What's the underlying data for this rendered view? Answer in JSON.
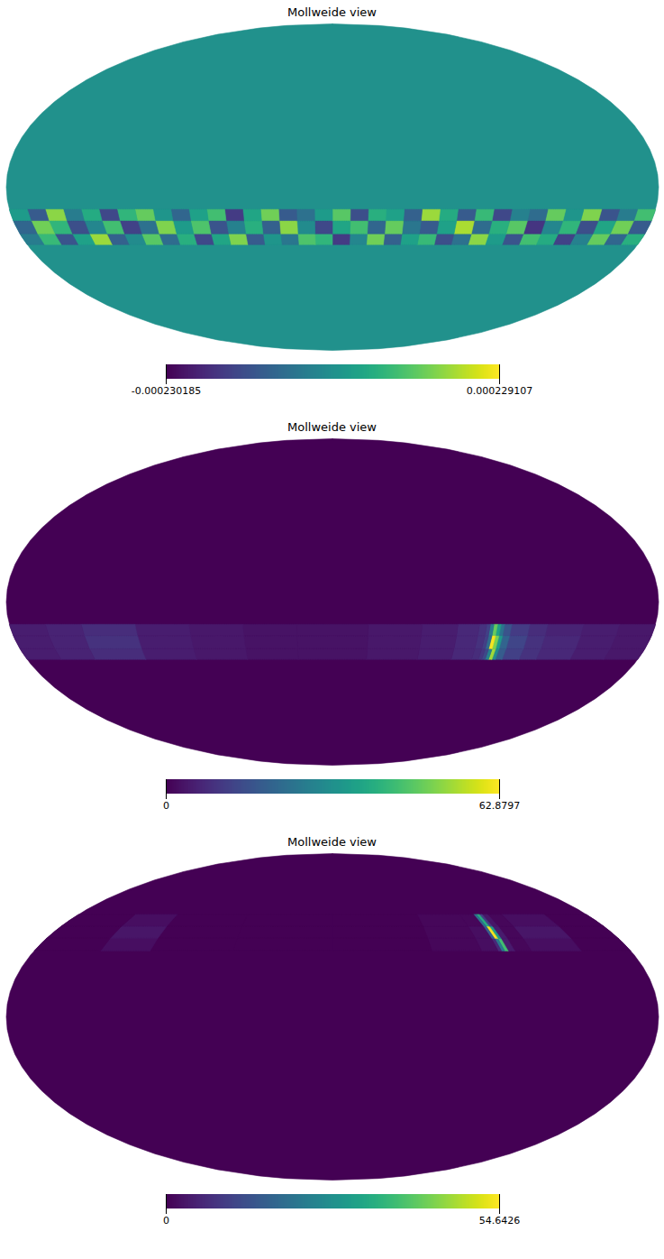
{
  "chart_data": [
    {
      "type": "heatmap",
      "title": "Mollweide view",
      "color": "viridis",
      "background_value": 0,
      "lon_edges": [
        -180,
        -170,
        -160,
        -150,
        -140,
        -130,
        -120,
        -110,
        -100,
        -90,
        -80,
        -70,
        -60,
        -50,
        -40,
        -30,
        -20,
        -10,
        0,
        10,
        20,
        30,
        40,
        50,
        60,
        70,
        80,
        90,
        100,
        110,
        120,
        130,
        140,
        150,
        160,
        170,
        180
      ],
      "lat_edges": [
        -26,
        -21,
        -15,
        -10
      ],
      "cells": [
        [
          6e-05,
          -8e-05,
          0.00012,
          -3e-05,
          -0.00014,
          5e-05,
          9e-05,
          -0.00011,
          2e-05,
          0.00015,
          -6e-05,
          -0.00012,
          8e-05,
          3e-05,
          -9e-05,
          0.00013,
          -2e-05,
          -0.00015,
          7e-05,
          0.0001,
          -5e-05,
          1e-05,
          -0.0001,
          0.00014,
          4e-05,
          -0.00013,
          6e-05,
          -7e-05,
          0.00011,
          -1e-05,
          -9e-05,
          0.00016,
          3e-05,
          -0.00011,
          8e-05,
          -4e-05
        ],
        [
          -0.0001,
          0.00013,
          4e-05,
          -0.00012,
          7e-05,
          -2e-05,
          -0.00016,
          0.00011,
          6e-05,
          -7e-05,
          0.00017,
          3e-05,
          -0.0001,
          -5e-05,
          0.00012,
          -8e-05,
          9e-05,
          4e-05,
          -0.00013,
          -1e-05,
          0.00015,
          -9e-05,
          6e-05,
          -3e-05,
          -0.00011,
          0.0001,
          2e-05,
          0.00014,
          -6e-05,
          -0.00014,
          9e-05,
          -2e-05,
          -0.00012,
          7e-05,
          0.00013,
          -8e-05
        ],
        [
          9e-05,
          -4e-05,
          -0.00011,
          0.00014,
          1e-05,
          0.00012,
          -7e-05,
          -3e-05,
          -0.00013,
          8e-05,
          -0.0001,
          5e-05,
          0.00016,
          -9e-05,
          3e-05,
          6e-05,
          -0.00012,
          0.00011,
          2e-05,
          -6e-05,
          -0.0001,
          0.00013,
          4e-05,
          -0.00015,
          9e-05,
          3e-05,
          -8e-05,
          1e-05,
          0.00012,
          7e-05,
          -0.00013,
          5e-05,
          -4e-05,
          0.00015,
          -0.0001,
          2e-05
        ]
      ],
      "colorbar": {
        "range": [
          -0.000230185,
          0.000229107
        ],
        "ticks": [
          -0.000230185,
          0.000229107
        ]
      }
    },
    {
      "type": "heatmap",
      "title": "Mollweide view",
      "color": "viridis",
      "background_value": 0,
      "lon_edges": [
        -180,
        -160,
        -140,
        -120,
        -110,
        -100,
        -96,
        -94,
        -92,
        -90,
        -88,
        -86,
        -82,
        -70,
        -50,
        -20,
        20,
        50,
        80,
        110,
        140,
        160,
        180
      ],
      "lat_edges": [
        -26,
        -21,
        -15,
        -10
      ],
      "cells": [
        [
          4,
          5,
          7,
          9,
          12,
          18,
          30,
          54,
          28,
          14,
          10,
          8,
          7,
          5,
          4,
          3,
          3,
          4,
          5,
          8,
          6,
          5
        ],
        [
          4,
          5,
          7,
          9,
          13,
          20,
          34,
          50,
          62,
          22,
          12,
          9,
          7,
          5,
          4,
          3,
          3,
          4,
          5,
          9,
          6,
          5
        ],
        [
          4,
          5,
          6,
          8,
          11,
          16,
          24,
          36,
          48,
          26,
          12,
          9,
          7,
          5,
          4,
          3,
          3,
          4,
          5,
          8,
          6,
          5
        ]
      ],
      "colorbar": {
        "range": [
          0,
          62.8797
        ],
        "ticks": [
          0,
          62.8797
        ]
      }
    },
    {
      "type": "heatmap",
      "title": "Mollweide view",
      "color": "viridis",
      "background_value": 0,
      "lon_edges": [
        -180,
        -150,
        -120,
        -110,
        -106,
        -104,
        -102,
        -100,
        -90,
        -60,
        0,
        60,
        110,
        140,
        180
      ],
      "lat_edges": [
        30,
        36,
        42,
        48
      ],
      "cells": [
        [
          0,
          2,
          1,
          4,
          38,
          22,
          6,
          2,
          1,
          0,
          0,
          0,
          2,
          0
        ],
        [
          0,
          3,
          1,
          4,
          30,
          54,
          16,
          2,
          1,
          0,
          0,
          0,
          3,
          0
        ],
        [
          0,
          2,
          1,
          3,
          10,
          34,
          20,
          1,
          1,
          0,
          0,
          0,
          2,
          0
        ]
      ],
      "colorbar": {
        "range": [
          0,
          54.6426
        ],
        "ticks": [
          0,
          54.6426
        ]
      }
    }
  ]
}
